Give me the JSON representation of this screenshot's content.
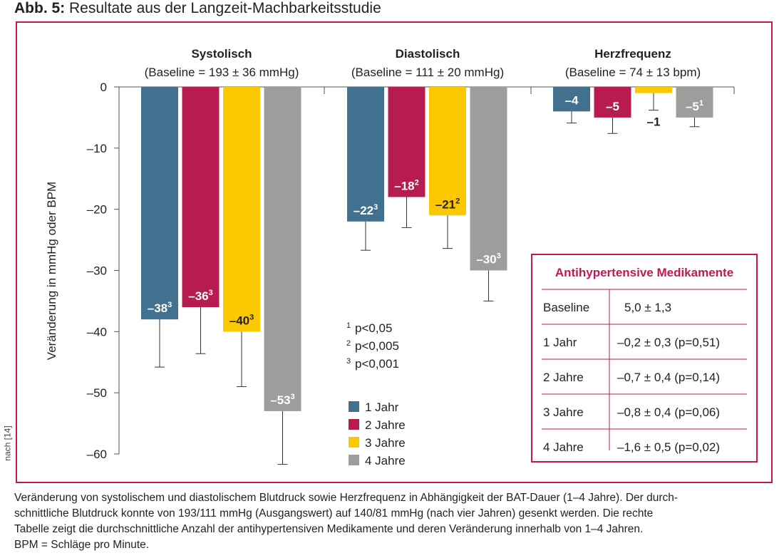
{
  "title": {
    "prefix": "Abb. 5:",
    "text": "Resultate aus der Langzeit-Machbarkeitsstudie"
  },
  "chart_data": {
    "type": "bar",
    "ylabel": "Veränderung in mmHg oder BPM",
    "ylim": [
      -60,
      0
    ],
    "yticks": [
      "0",
      "–10",
      "–20",
      "–30",
      "–40",
      "–50",
      "–60"
    ],
    "groups": [
      {
        "name": "Systolisch",
        "subtitle": "(Baseline = 193 ± 36 mmHg)"
      },
      {
        "name": "Diastolisch",
        "subtitle": "(Baseline = 111 ± 20 mmHg)"
      },
      {
        "name": "Herzfrequenz",
        "subtitle": "(Baseline = 74 ± 13 bpm)"
      }
    ],
    "series": [
      {
        "name": "1 Jahr",
        "color": "#41718f",
        "values": [
          -38,
          -22,
          -4
        ],
        "error_low": [
          -45.8,
          -26.7,
          -5.9
        ],
        "labels": [
          "–38",
          "–22",
          "–4"
        ],
        "sup": [
          "3",
          "3",
          ""
        ]
      },
      {
        "name": "2 Jahre",
        "color": "#b71c4f",
        "values": [
          -36,
          -18,
          -5
        ],
        "error_low": [
          -43.6,
          -23,
          -7.6
        ],
        "labels": [
          "–36",
          "–18",
          "–5"
        ],
        "sup": [
          "3",
          "2",
          ""
        ]
      },
      {
        "name": "3 Jahre",
        "color": "#fcc800",
        "values": [
          -40,
          -21,
          -1
        ],
        "error_low": [
          -49,
          -26.4,
          -3.8
        ],
        "labels": [
          "–40",
          "–21",
          "–1"
        ],
        "sup": [
          "3",
          "2",
          ""
        ]
      },
      {
        "name": "4 Jahre",
        "color": "#9d9d9c",
        "values": [
          -53,
          -30,
          -5
        ],
        "error_low": [
          -61.7,
          -35,
          -6.5
        ],
        "labels": [
          "–53",
          "–30",
          "–5"
        ],
        "sup": [
          "3",
          "3",
          "1"
        ]
      }
    ],
    "footnotes": [
      {
        "n": "1",
        "t": "p<0,05"
      },
      {
        "n": "2",
        "t": "p<0,005"
      },
      {
        "n": "3",
        "t": "p<0,001"
      }
    ],
    "legend_position": "center-bottom"
  },
  "table": {
    "title": "Antihypertensive Medikamente",
    "rows": [
      [
        "Baseline",
        "5,0 ± 1,3"
      ],
      [
        "1 Jahr",
        "–0,2 ± 0,3 (p=0,51)"
      ],
      [
        "2 Jahre",
        "–0,7 ± 0,4 (p=0,14)"
      ],
      [
        "3 Jahre",
        "–0,8 ± 0,4 (p=0,06)"
      ],
      [
        "4 Jahre",
        "–1,6 ± 0,5 (p=0,02)"
      ]
    ]
  },
  "source": "nach [14]",
  "caption": [
    "Veränderung von systolischem und diastolischem Blutdruck sowie Herzfrequenz in Abhängigkeit der BAT-Dauer (1–4 Jahre). Der durch-",
    "schnittliche Blutdruck konnte von 193/111 mmHg (Ausgangswert) auf 140/81 mmHg (nach vier Jahren) gesenkt werden. Die rechte",
    "Tabelle zeigt die durchschnittliche Anzahl der antihypertensiven Medikamente und deren Veränderung innerhalb von 1–4 Jahren.",
    "BPM = Schläge pro Minute."
  ]
}
